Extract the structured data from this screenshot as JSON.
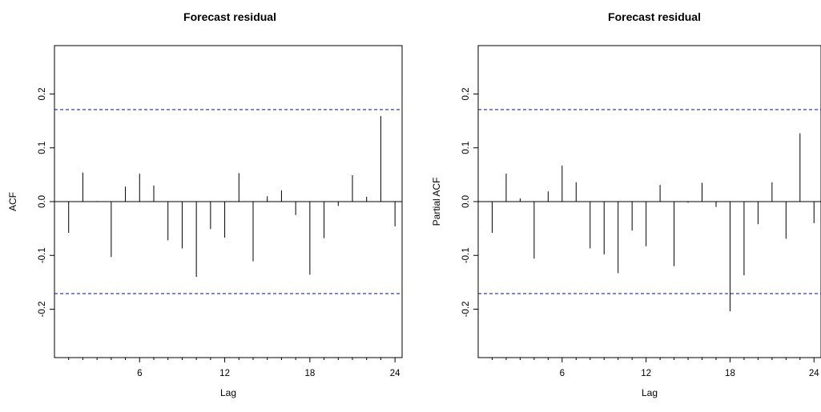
{
  "chart_data": [
    {
      "type": "bar",
      "title": "Forecast residual",
      "xlabel": "Lag",
      "ylabel": "ACF",
      "xlim": [
        0,
        24.5
      ],
      "ylim": [
        -0.29,
        0.29
      ],
      "x_ticks": [
        6,
        12,
        18,
        24
      ],
      "y_ticks": [
        -0.2,
        -0.1,
        0.0,
        0.1,
        0.2
      ],
      "y_tick_labels": [
        "-0.2",
        "-0.1",
        "0.0",
        "0.1",
        "0.2"
      ],
      "confidence_bound": 0.171,
      "confidence_color": "#0000cc",
      "grid": false,
      "lags": [
        1,
        2,
        3,
        4,
        5,
        6,
        7,
        8,
        9,
        10,
        11,
        12,
        13,
        14,
        15,
        16,
        17,
        18,
        19,
        20,
        21,
        22,
        23,
        24
      ],
      "values": [
        -0.058,
        0.054,
        0.001,
        -0.103,
        0.028,
        0.052,
        0.03,
        -0.072,
        -0.087,
        -0.14,
        -0.051,
        -0.067,
        0.053,
        -0.111,
        0.01,
        0.021,
        -0.025,
        -0.136,
        -0.068,
        -0.008,
        0.049,
        0.009,
        0.159,
        -0.046
      ]
    },
    {
      "type": "bar",
      "title": "Forecast residual",
      "xlabel": "Lag",
      "ylabel": "Partial ACF",
      "xlim": [
        0,
        24.5
      ],
      "ylim": [
        -0.29,
        0.29
      ],
      "x_ticks": [
        6,
        12,
        18,
        24
      ],
      "y_ticks": [
        -0.2,
        -0.1,
        0.0,
        0.1,
        0.2
      ],
      "y_tick_labels": [
        "-0.2",
        "-0.1",
        "0.0",
        "0.1",
        "0.2"
      ],
      "confidence_bound": 0.171,
      "confidence_color": "#0000cc",
      "grid": false,
      "lags": [
        1,
        2,
        3,
        4,
        5,
        6,
        7,
        8,
        9,
        10,
        11,
        12,
        13,
        14,
        15,
        16,
        17,
        18,
        19,
        20,
        21,
        22,
        23,
        24
      ],
      "values": [
        -0.058,
        0.052,
        0.006,
        -0.106,
        0.019,
        0.067,
        0.036,
        -0.087,
        -0.098,
        -0.133,
        -0.054,
        -0.083,
        0.031,
        -0.12,
        -0.002,
        0.035,
        -0.01,
        -0.204,
        -0.137,
        -0.042,
        0.036,
        -0.069,
        0.127,
        -0.04
      ]
    }
  ]
}
